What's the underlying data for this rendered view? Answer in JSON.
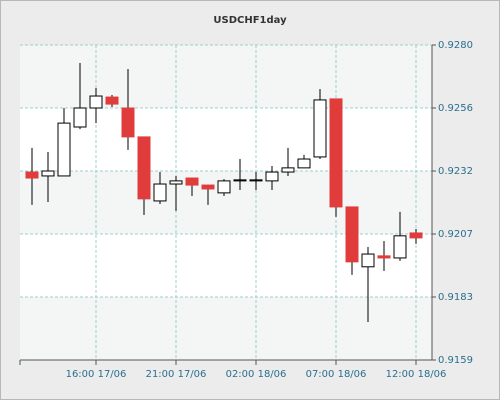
{
  "chart_data": {
    "type": "candlestick",
    "title": "USDCHF1day",
    "categories": [
      null,
      null,
      null,
      null,
      "16:00 17/06",
      null,
      null,
      null,
      null,
      "21:00 17/06",
      null,
      null,
      null,
      null,
      "02:00 18/06",
      null,
      null,
      null,
      null,
      "07:00 18/06",
      null,
      null,
      null,
      null,
      "12:00 18/06"
    ],
    "open": [
      0.92312,
      0.92297,
      0.92297,
      0.92485,
      0.92558,
      0.926,
      0.92558,
      0.92447,
      0.92201,
      0.92266,
      0.92289,
      0.92262,
      0.92232,
      0.92278,
      0.92278,
      0.92278,
      0.92312,
      0.92328,
      0.9237,
      0.92593,
      0.92178,
      0.91948,
      0.9199,
      0.91982,
      0.92078
    ],
    "high": [
      0.92405,
      0.92389,
      0.92558,
      0.92731,
      0.92635,
      0.92608,
      0.92708,
      0.92447,
      0.92312,
      0.92297,
      0.92289,
      0.92262,
      0.92285,
      0.92362,
      0.92312,
      0.92335,
      0.92405,
      0.92378,
      0.92631,
      0.92593,
      0.92178,
      0.92024,
      0.92047,
      0.92159,
      0.92093
    ],
    "low": [
      0.92186,
      0.92197,
      0.92297,
      0.92477,
      0.925,
      0.92562,
      0.92397,
      0.92147,
      0.92189,
      0.92163,
      0.9222,
      0.92186,
      0.9222,
      0.92243,
      0.92243,
      0.92243,
      0.92297,
      0.92328,
      0.92362,
      0.9214,
      0.91917,
      0.91736,
      0.91932,
      0.91971,
      0.92036
    ],
    "close": [
      0.92289,
      0.92316,
      0.925,
      0.92558,
      0.92604,
      0.92573,
      0.92447,
      0.92209,
      0.92266,
      0.92278,
      0.92262,
      0.92247,
      0.92278,
      0.92282,
      0.92282,
      0.92312,
      0.92328,
      0.92362,
      0.92589,
      0.92178,
      0.91967,
      0.91997,
      0.91982,
      0.92067,
      0.92059
    ],
    "up_color": "#ffffff",
    "down_color": "#e03c3c",
    "ylim": [
      0.9159,
      0.928
    ],
    "yticks": [
      0.9159,
      {
        "value": 0.91832,
        "label": "0.9183"
      },
      {
        "value": 0.92074,
        "label": "0.9207"
      },
      {
        "value": 0.92316,
        "label": "0.9232"
      },
      {
        "value": 0.92558,
        "label": "0.9256"
      },
      {
        "value": 0.928,
        "label": "0.9280"
      }
    ],
    "grid": true
  }
}
